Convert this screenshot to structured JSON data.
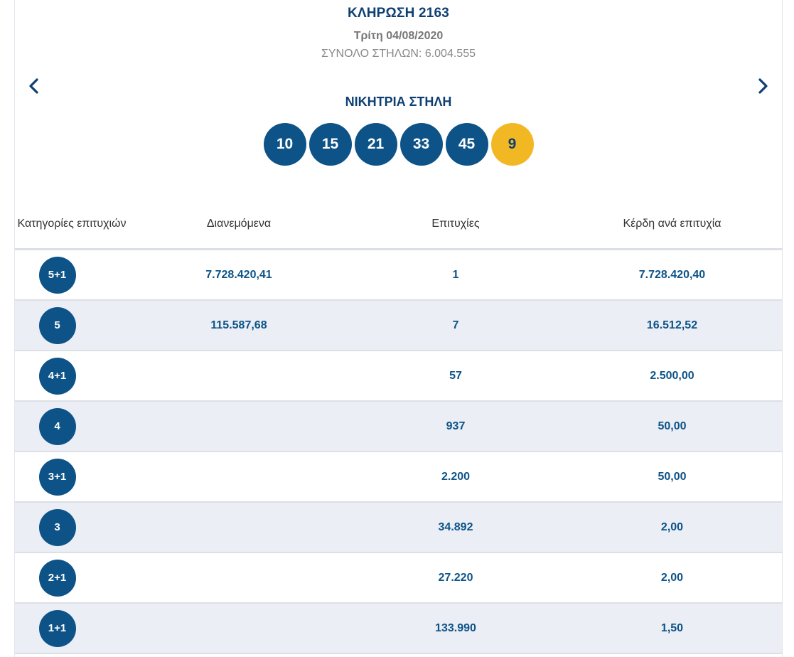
{
  "draw": {
    "title": "ΚΛΗΡΩΣΗ 2163",
    "date": "Τρίτη 04/08/2020",
    "total_columns": "ΣΥΝΟΛΟ ΣΤΗΛΩΝ: 6.004.555"
  },
  "nav": {
    "prev_icon": "chevron-left-icon",
    "next_icon": "chevron-right-icon"
  },
  "winning": {
    "label": "ΝΙΚΗΤΡΙΑ ΣΤΗΛΗ",
    "numbers": [
      "10",
      "15",
      "21",
      "33",
      "45"
    ],
    "bonus": "9"
  },
  "colors": {
    "primary": "#0d5388",
    "bonus": "#f2b824",
    "heading": "#0e3f73",
    "row_alt": "#ebeef5"
  },
  "table": {
    "headers": {
      "category": "Κατηγορίες επιτυχιών",
      "distributed": "Διανεμόμενα",
      "winners": "Επιτυχίες",
      "prize": "Κέρδη ανά επιτυχία"
    },
    "rows": [
      {
        "category": "5+1",
        "distributed": "7.728.420,41",
        "winners": "1",
        "prize": "7.728.420,40"
      },
      {
        "category": "5",
        "distributed": "115.587,68",
        "winners": "7",
        "prize": "16.512,52"
      },
      {
        "category": "4+1",
        "distributed": "",
        "winners": "57",
        "prize": "2.500,00"
      },
      {
        "category": "4",
        "distributed": "",
        "winners": "937",
        "prize": "50,00"
      },
      {
        "category": "3+1",
        "distributed": "",
        "winners": "2.200",
        "prize": "50,00"
      },
      {
        "category": "3",
        "distributed": "",
        "winners": "34.892",
        "prize": "2,00"
      },
      {
        "category": "2+1",
        "distributed": "",
        "winners": "27.220",
        "prize": "2,00"
      },
      {
        "category": "1+1",
        "distributed": "",
        "winners": "133.990",
        "prize": "1,50"
      }
    ]
  }
}
